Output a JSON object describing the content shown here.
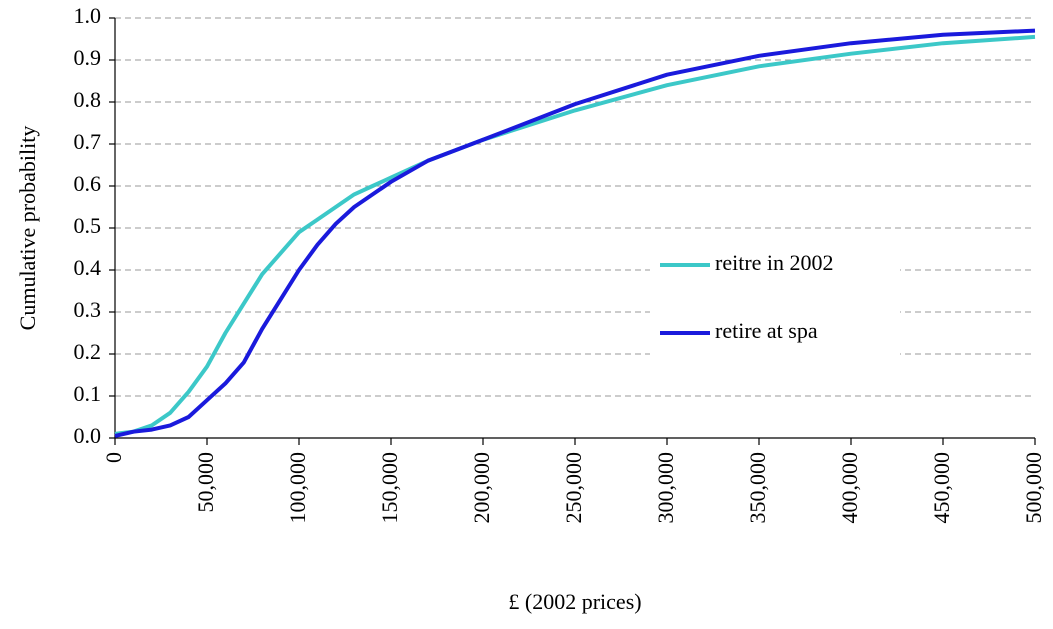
{
  "chart_data": {
    "type": "line",
    "x_label": "£ (2002 prices)",
    "y_label": "Cumulative probability",
    "x": [
      0,
      10000,
      20000,
      30000,
      40000,
      50000,
      60000,
      70000,
      80000,
      90000,
      100000,
      110000,
      120000,
      130000,
      140000,
      150000,
      170000,
      200000,
      250000,
      300000,
      350000,
      400000,
      450000,
      500000
    ],
    "series": [
      {
        "name": "reitre in 2002",
        "color": "#3cc8c8",
        "values": [
          0.01,
          0.015,
          0.03,
          0.06,
          0.11,
          0.17,
          0.25,
          0.32,
          0.39,
          0.44,
          0.49,
          0.52,
          0.55,
          0.58,
          0.6,
          0.62,
          0.66,
          0.71,
          0.78,
          0.84,
          0.885,
          0.915,
          0.94,
          0.955
        ]
      },
      {
        "name": "retire at spa",
        "color": "#1a1adc",
        "values": [
          0.005,
          0.015,
          0.02,
          0.03,
          0.05,
          0.09,
          0.13,
          0.18,
          0.26,
          0.33,
          0.4,
          0.46,
          0.51,
          0.55,
          0.58,
          0.61,
          0.66,
          0.71,
          0.795,
          0.865,
          0.91,
          0.94,
          0.96,
          0.97
        ]
      }
    ],
    "xlim": [
      0,
      500000
    ],
    "xticks": [
      0,
      {
        "value": 50000,
        "label": "50,000"
      },
      {
        "value": 100000,
        "label": "100,000"
      },
      {
        "value": 150000,
        "label": "150,000"
      },
      {
        "value": 200000,
        "label": "200,000"
      },
      {
        "value": 250000,
        "label": "250,000"
      },
      {
        "value": 300000,
        "label": "300,000"
      },
      {
        "value": 350000,
        "label": "350,000"
      },
      {
        "value": 400000,
        "label": "400,000"
      },
      {
        "value": 450000,
        "label": "450,000"
      },
      {
        "value": 500000,
        "label": "500,000"
      }
    ],
    "ylim": [
      0,
      1
    ],
    "yticks": [
      {
        "value": 0,
        "label": "0.0"
      },
      0.1,
      0.2,
      0.3,
      0.4,
      0.5,
      0.6,
      0.7,
      0.8,
      0.9,
      {
        "value": 1,
        "label": "1.0"
      }
    ],
    "grid": true,
    "legend": "right"
  }
}
